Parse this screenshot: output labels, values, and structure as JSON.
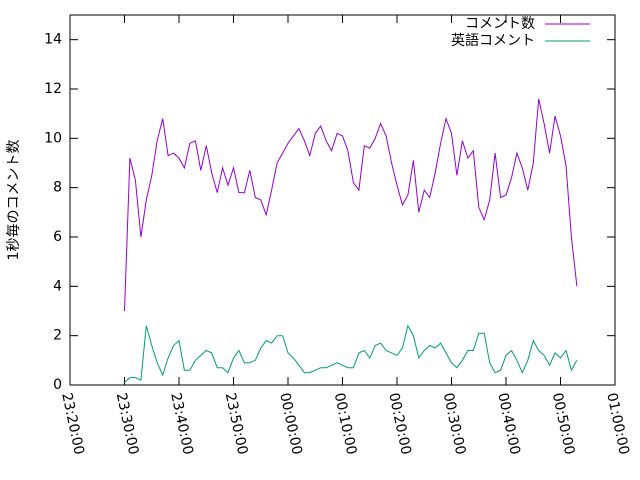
{
  "chart_data": {
    "type": "line",
    "ylabel": "1秒毎のコメント数",
    "x": [
      "23:30:00",
      "23:31:00",
      "23:32:00",
      "23:33:00",
      "23:34:00",
      "23:35:00",
      "23:36:00",
      "23:37:00",
      "23:38:00",
      "23:39:00",
      "23:40:00",
      "23:41:00",
      "23:42:00",
      "23:43:00",
      "23:44:00",
      "23:45:00",
      "23:46:00",
      "23:47:00",
      "23:48:00",
      "23:49:00",
      "23:50:00",
      "23:51:00",
      "23:52:00",
      "23:53:00",
      "23:54:00",
      "23:55:00",
      "23:56:00",
      "23:57:00",
      "23:58:00",
      "23:59:00",
      "00:00:00",
      "00:01:00",
      "00:02:00",
      "00:03:00",
      "00:04:00",
      "00:05:00",
      "00:06:00",
      "00:07:00",
      "00:08:00",
      "00:09:00",
      "00:10:00",
      "00:11:00",
      "00:12:00",
      "00:13:00",
      "00:14:00",
      "00:15:00",
      "00:16:00",
      "00:17:00",
      "00:18:00",
      "00:19:00",
      "00:20:00",
      "00:21:00",
      "00:22:00",
      "00:23:00",
      "00:24:00",
      "00:25:00",
      "00:26:00",
      "00:27:00",
      "00:28:00",
      "00:29:00",
      "00:30:00",
      "00:31:00",
      "00:32:00",
      "00:33:00",
      "00:34:00",
      "00:35:00",
      "00:36:00",
      "00:37:00",
      "00:38:00",
      "00:39:00",
      "00:40:00",
      "00:41:00",
      "00:42:00",
      "00:43:00",
      "00:44:00",
      "00:45:00",
      "00:46:00",
      "00:47:00",
      "00:48:00",
      "00:49:00",
      "00:50:00",
      "00:51:00",
      "00:52:00",
      "00:53:00"
    ],
    "series": [
      {
        "name": "コメント数",
        "color": "#9400d3",
        "values": [
          3.0,
          9.2,
          8.3,
          6.0,
          7.5,
          8.5,
          9.9,
          10.8,
          9.3,
          9.4,
          9.2,
          8.8,
          9.8,
          9.9,
          8.7,
          9.7,
          8.6,
          7.8,
          8.8,
          8.1,
          8.8,
          7.8,
          7.8,
          8.7,
          7.6,
          7.5,
          6.9,
          7.9,
          9.0,
          9.4,
          9.8,
          10.1,
          10.4,
          9.9,
          9.3,
          10.2,
          10.5,
          9.9,
          9.5,
          10.2,
          10.1,
          9.5,
          8.2,
          7.9,
          9.7,
          9.6,
          10.0,
          10.6,
          10.1,
          9.0,
          8.1,
          7.3,
          7.7,
          9.1,
          7.0,
          7.9,
          7.6,
          8.6,
          9.8,
          10.8,
          10.2,
          8.5,
          9.9,
          9.2,
          9.5,
          7.2,
          6.7,
          7.5,
          9.4,
          7.6,
          7.7,
          8.4,
          9.4,
          8.8,
          7.9,
          9.0,
          11.6,
          10.6,
          9.4,
          10.9,
          10.1,
          8.9,
          6.0,
          4.0
        ]
      },
      {
        "name": "英語コメント",
        "color": "#009e73",
        "values": [
          0.1,
          0.3,
          0.3,
          0.2,
          2.4,
          1.6,
          0.9,
          0.4,
          1.1,
          1.6,
          1.8,
          0.6,
          0.6,
          1.0,
          1.2,
          1.4,
          1.3,
          0.7,
          0.7,
          0.5,
          1.1,
          1.4,
          0.9,
          0.9,
          1.0,
          1.5,
          1.8,
          1.7,
          2.0,
          2.0,
          1.3,
          1.1,
          0.8,
          0.5,
          0.5,
          0.6,
          0.7,
          0.7,
          0.8,
          0.9,
          0.8,
          0.7,
          0.7,
          1.3,
          1.4,
          1.1,
          1.6,
          1.7,
          1.4,
          1.3,
          1.2,
          1.5,
          2.4,
          2.0,
          1.1,
          1.4,
          1.6,
          1.5,
          1.7,
          1.3,
          0.9,
          0.7,
          1.0,
          1.4,
          1.4,
          2.1,
          2.1,
          0.9,
          0.5,
          0.6,
          1.2,
          1.4,
          1.0,
          0.5,
          1.0,
          1.8,
          1.4,
          1.2,
          0.8,
          1.3,
          1.1,
          1.4,
          0.6,
          1.0
        ]
      }
    ],
    "xlim": [
      "23:20:00",
      "01:00:00"
    ],
    "xticks": [
      "23:20:00",
      "23:30:00",
      "23:40:00",
      "23:50:00",
      "00:00:00",
      "00:10:00",
      "00:20:00",
      "00:30:00",
      "00:40:00",
      "00:50:00",
      "01:00:00"
    ],
    "ylim": [
      0,
      15
    ],
    "yticks": [
      0,
      2,
      4,
      6,
      8,
      10,
      12,
      14
    ],
    "legend": "top-right"
  }
}
